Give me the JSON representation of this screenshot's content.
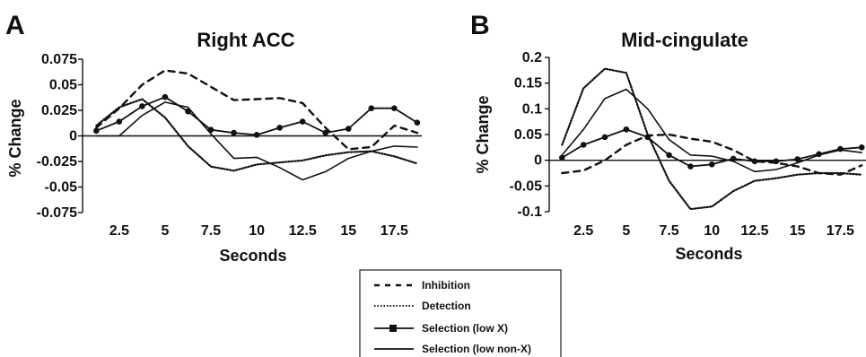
{
  "legend": {
    "items": [
      {
        "label": "Inhibition",
        "style": "dashed"
      },
      {
        "label": "Detection",
        "style": "dotted"
      },
      {
        "label": "Selection (low X)",
        "style": "solid-marker"
      },
      {
        "label": "Selection (low non-X)",
        "style": "solid"
      }
    ]
  },
  "chart_data": [
    {
      "panel": "A",
      "type": "line",
      "title": "Right ACC",
      "xlabel": "Seconds",
      "ylabel": "% Change",
      "xlim": [
        0.5,
        19
      ],
      "ylim": [
        -0.075,
        0.075
      ],
      "xticks": [
        2.5,
        5,
        7.5,
        10,
        12.5,
        15,
        17.5
      ],
      "xtick_labels": [
        "2.5",
        "5",
        "7.5",
        "10",
        "12.5",
        "15",
        "17.5"
      ],
      "yticks": [
        0.075,
        0.05,
        0.025,
        0,
        -0.025,
        -0.05,
        -0.075
      ],
      "ytick_labels": [
        "0.075",
        "0.05",
        "0.025",
        "0",
        "-0.025",
        "-0.05",
        "-0.075"
      ],
      "zero_line": true,
      "x": [
        1.25,
        2.5,
        3.75,
        5.0,
        6.25,
        7.5,
        8.75,
        10.0,
        11.25,
        12.5,
        13.75,
        15.0,
        16.25,
        17.5,
        18.75
      ],
      "series": [
        {
          "name": "Inhibition",
          "style": "dashed",
          "values": [
            0.008,
            0.027,
            0.05,
            0.064,
            0.061,
            0.048,
            0.035,
            0.036,
            0.037,
            0.032,
            0.008,
            -0.013,
            -0.011,
            0.01,
            0.003
          ]
        },
        {
          "name": "Detection",
          "style": "dotted",
          "values": [
            0.01,
            0.028,
            0.036,
            0.018,
            -0.01,
            -0.03,
            -0.034,
            -0.028,
            -0.026,
            -0.024,
            -0.019,
            -0.016,
            -0.015,
            -0.02,
            -0.027
          ]
        },
        {
          "name": "Selection (low X)",
          "style": "solid-marker",
          "values": [
            0.005,
            0.014,
            0.029,
            0.038,
            0.024,
            0.006,
            0.003,
            0.001,
            0.008,
            0.014,
            0.003,
            0.007,
            0.027,
            0.027,
            0.013
          ]
        },
        {
          "name": "Selection (low non-X)",
          "style": "solid",
          "values": [
            0.0,
            0.0,
            0.02,
            0.033,
            0.028,
            0.002,
            -0.022,
            -0.021,
            -0.031,
            -0.043,
            -0.035,
            -0.022,
            -0.015,
            -0.01,
            -0.011
          ]
        }
      ]
    },
    {
      "panel": "B",
      "type": "line",
      "title": "Mid-cingulate",
      "xlabel": "Seconds",
      "ylabel": "% Change",
      "xlim": [
        0.5,
        19
      ],
      "ylim": [
        -0.1,
        0.2
      ],
      "xticks": [
        2.5,
        5,
        7.5,
        10,
        12.5,
        15,
        17.5
      ],
      "xtick_labels": [
        "2.5",
        "5",
        "7.5",
        "10",
        "12.5",
        "15",
        "17.5"
      ],
      "yticks": [
        0.2,
        0.15,
        0.1,
        0.05,
        0,
        -0.05,
        -0.1
      ],
      "ytick_labels": [
        "0.2",
        "0.15",
        "0.1",
        "0.05",
        "0",
        "-0.05",
        "-0.1"
      ],
      "zero_line": true,
      "x": [
        1.25,
        2.5,
        3.75,
        5.0,
        6.25,
        7.5,
        8.75,
        10.0,
        11.25,
        12.5,
        13.75,
        15.0,
        16.25,
        17.5,
        18.75
      ],
      "series": [
        {
          "name": "Inhibition",
          "style": "dashed",
          "values": [
            -0.025,
            -0.02,
            0.0,
            0.03,
            0.048,
            0.05,
            0.042,
            0.036,
            0.02,
            -0.002,
            -0.005,
            -0.012,
            -0.025,
            -0.028,
            -0.01
          ]
        },
        {
          "name": "Detection",
          "style": "dotted",
          "values": [
            0.03,
            0.14,
            0.178,
            0.17,
            0.05,
            -0.04,
            -0.095,
            -0.09,
            -0.06,
            -0.04,
            -0.035,
            -0.028,
            -0.025,
            -0.025,
            -0.028
          ]
        },
        {
          "name": "Selection (low X)",
          "style": "solid-marker",
          "values": [
            0.005,
            0.03,
            0.045,
            0.06,
            0.045,
            0.01,
            -0.012,
            -0.008,
            0.003,
            -0.002,
            -0.002,
            0.002,
            0.012,
            0.022,
            0.025
          ]
        },
        {
          "name": "Selection (low non-X)",
          "style": "solid",
          "values": [
            0.01,
            0.06,
            0.12,
            0.138,
            0.1,
            0.04,
            0.01,
            0.008,
            -0.002,
            -0.022,
            -0.018,
            -0.005,
            0.01,
            0.02,
            0.015
          ]
        }
      ]
    }
  ]
}
